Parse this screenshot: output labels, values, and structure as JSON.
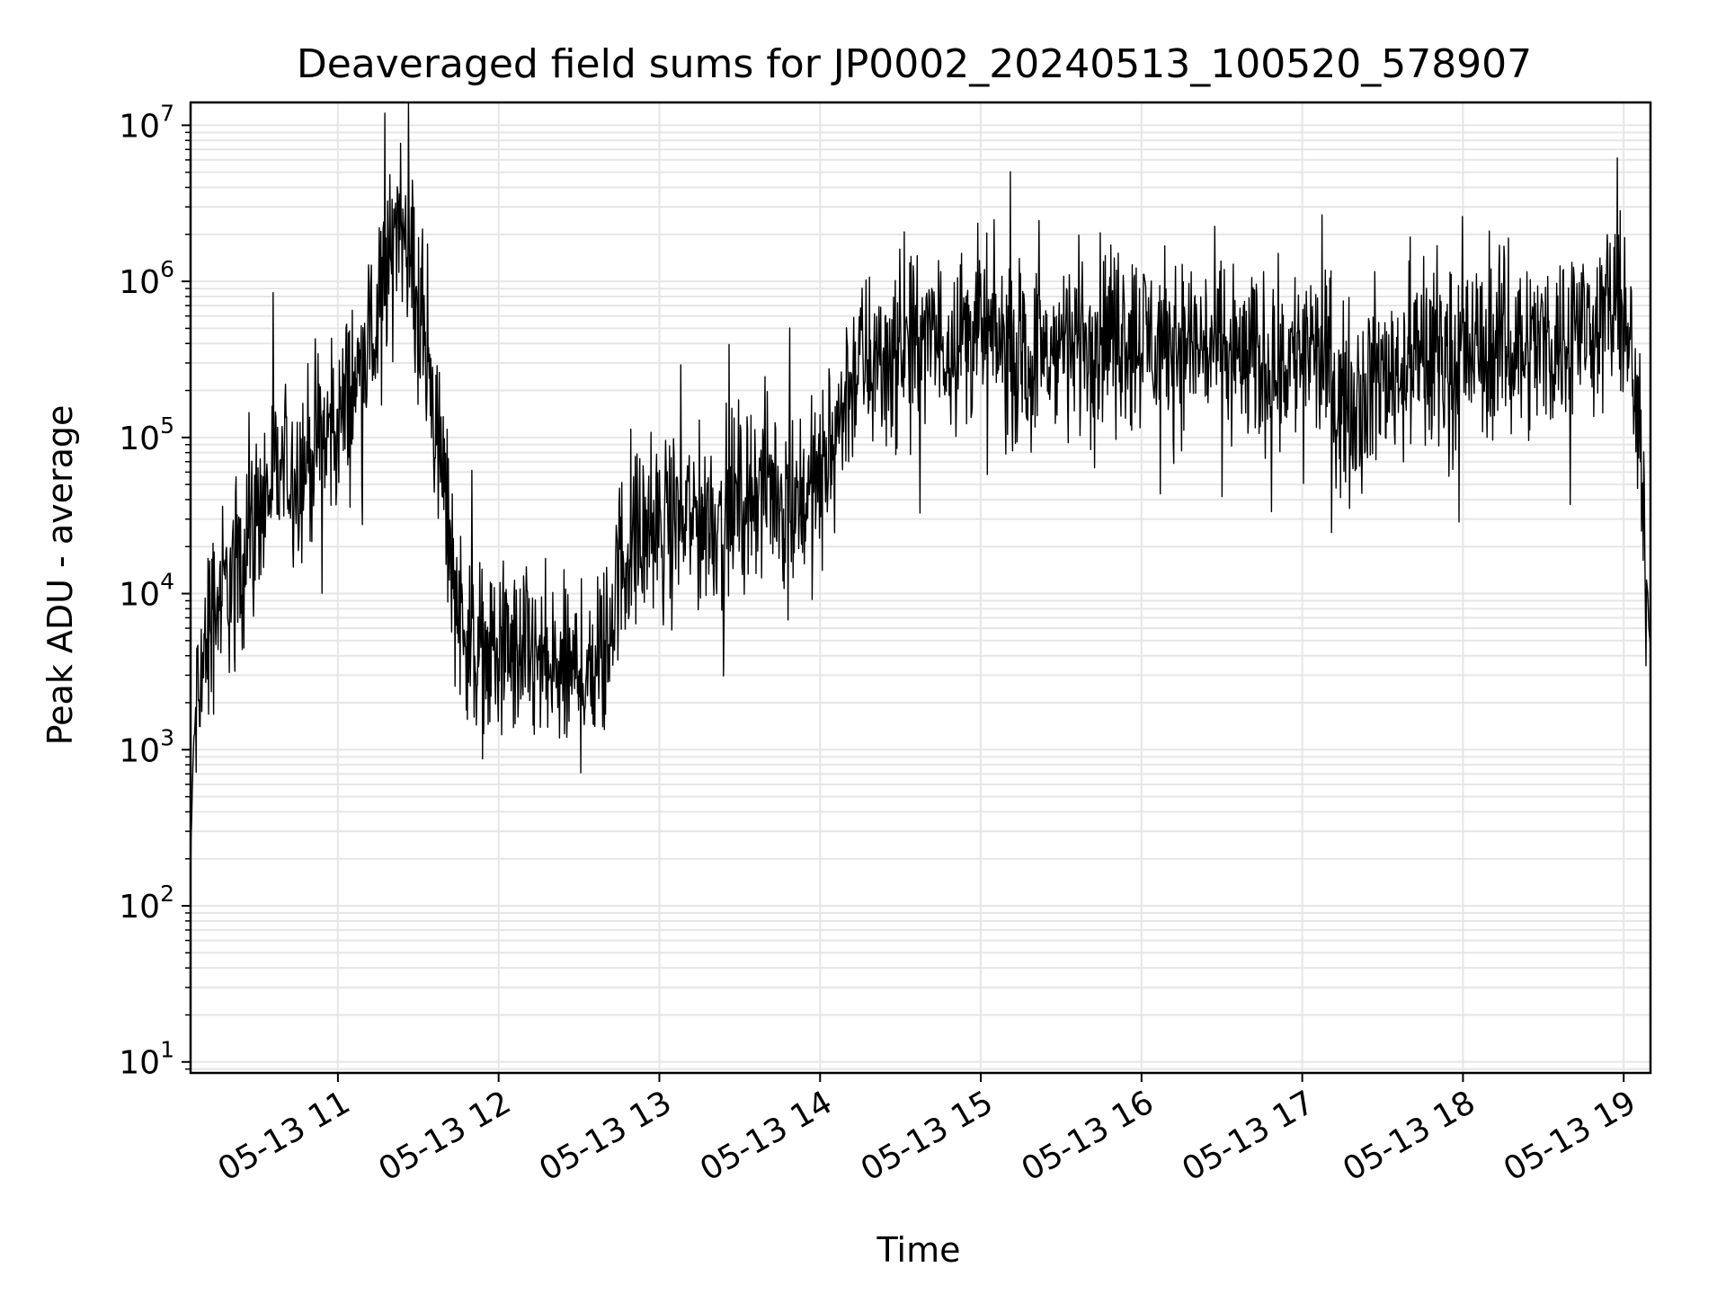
{
  "chart_data": {
    "type": "line",
    "title": "Deaveraged field sums for JP0002_20240513_100520_578907",
    "xlabel": "Time",
    "ylabel": "Peak ADU - average",
    "yscale": "log",
    "ylim": [
      8.5,
      14000000
    ],
    "xlim": [
      "2024-05-13 10:05",
      "2024-05-13 19:10"
    ],
    "grid": true,
    "line_color": "#000000",
    "grid_color": "#e6e6e6",
    "x_ticks": [
      {
        "t": "2024-05-13 11:00",
        "label": "05-13 11"
      },
      {
        "t": "2024-05-13 12:00",
        "label": "05-13 12"
      },
      {
        "t": "2024-05-13 13:00",
        "label": "05-13 13"
      },
      {
        "t": "2024-05-13 14:00",
        "label": "05-13 14"
      },
      {
        "t": "2024-05-13 15:00",
        "label": "05-13 15"
      },
      {
        "t": "2024-05-13 16:00",
        "label": "05-13 16"
      },
      {
        "t": "2024-05-13 17:00",
        "label": "05-13 17"
      },
      {
        "t": "2024-05-13 18:00",
        "label": "05-13 18"
      },
      {
        "t": "2024-05-13 19:00",
        "label": "05-13 19"
      }
    ],
    "y_ticks": [
      {
        "value": 10,
        "base": "10",
        "exp": "1"
      },
      {
        "value": 100,
        "base": "10",
        "exp": "2"
      },
      {
        "value": 1000,
        "base": "10",
        "exp": "3"
      },
      {
        "value": 10000,
        "base": "10",
        "exp": "4"
      },
      {
        "value": 100000,
        "base": "10",
        "exp": "5"
      },
      {
        "value": 1000000,
        "base": "10",
        "exp": "6"
      },
      {
        "value": 10000000,
        "base": "10",
        "exp": "7"
      }
    ],
    "series": [
      {
        "x": [
          "2024-05-13 10:05",
          "2024-05-13 10:06",
          "2024-05-13 10:08",
          "2024-05-13 10:12",
          "2024-05-13 10:15",
          "2024-05-13 10:20",
          "2024-05-13 10:25",
          "2024-05-13 10:30",
          "2024-05-13 10:35",
          "2024-05-13 10:40",
          "2024-05-13 10:45",
          "2024-05-13 10:50",
          "2024-05-13 10:55",
          "2024-05-13 11:00",
          "2024-05-13 11:05",
          "2024-05-13 11:10",
          "2024-05-13 11:15",
          "2024-05-13 11:20",
          "2024-05-13 11:23",
          "2024-05-13 11:26",
          "2024-05-13 11:30",
          "2024-05-13 11:35",
          "2024-05-13 11:40",
          "2024-05-13 11:45",
          "2024-05-13 11:50",
          "2024-05-13 11:55",
          "2024-05-13 12:00",
          "2024-05-13 12:10",
          "2024-05-13 12:20",
          "2024-05-13 12:30",
          "2024-05-13 12:40",
          "2024-05-13 12:45",
          "2024-05-13 12:50",
          "2024-05-13 13:00",
          "2024-05-13 13:10",
          "2024-05-13 13:20",
          "2024-05-13 13:30",
          "2024-05-13 13:40",
          "2024-05-13 13:50",
          "2024-05-13 14:00",
          "2024-05-13 14:05",
          "2024-05-13 14:10",
          "2024-05-13 14:15",
          "2024-05-13 14:20",
          "2024-05-13 14:30",
          "2024-05-13 14:40",
          "2024-05-13 14:50",
          "2024-05-13 15:00",
          "2024-05-13 15:10",
          "2024-05-13 15:20",
          "2024-05-13 15:30",
          "2024-05-13 15:40",
          "2024-05-13 15:50",
          "2024-05-13 16:00",
          "2024-05-13 16:10",
          "2024-05-13 16:20",
          "2024-05-13 16:30",
          "2024-05-13 16:40",
          "2024-05-13 16:50",
          "2024-05-13 17:00",
          "2024-05-13 17:10",
          "2024-05-13 17:15",
          "2024-05-13 17:20",
          "2024-05-13 17:30",
          "2024-05-13 17:40",
          "2024-05-13 17:50",
          "2024-05-13 18:00",
          "2024-05-13 18:10",
          "2024-05-13 18:20",
          "2024-05-13 18:30",
          "2024-05-13 18:40",
          "2024-05-13 18:50",
          "2024-05-13 18:55",
          "2024-05-13 19:00",
          "2024-05-13 19:03",
          "2024-05-13 19:06",
          "2024-05-13 19:08",
          "2024-05-13 19:10"
        ],
        "y": [
          150,
          1000,
          2500,
          6000,
          9000,
          12000,
          20000,
          30000,
          50000,
          60000,
          60000,
          80000,
          100000,
          120000,
          200000,
          300000,
          500000,
          1500000,
          3500000,
          2000000,
          600000,
          200000,
          40000,
          8000,
          5000,
          4000,
          4000,
          4000,
          3000,
          3000,
          4000,
          15000,
          20000,
          25000,
          30000,
          30000,
          40000,
          50000,
          40000,
          50000,
          90000,
          200000,
          300000,
          300000,
          350000,
          400000,
          450000,
          500000,
          350000,
          300000,
          400000,
          450000,
          500000,
          450000,
          400000,
          400000,
          350000,
          300000,
          300000,
          350000,
          300000,
          150000,
          200000,
          250000,
          300000,
          300000,
          350000,
          350000,
          400000,
          400000,
          450000,
          600000,
          650000,
          550000,
          300000,
          80000,
          20000,
          4000
        ]
      }
    ]
  }
}
